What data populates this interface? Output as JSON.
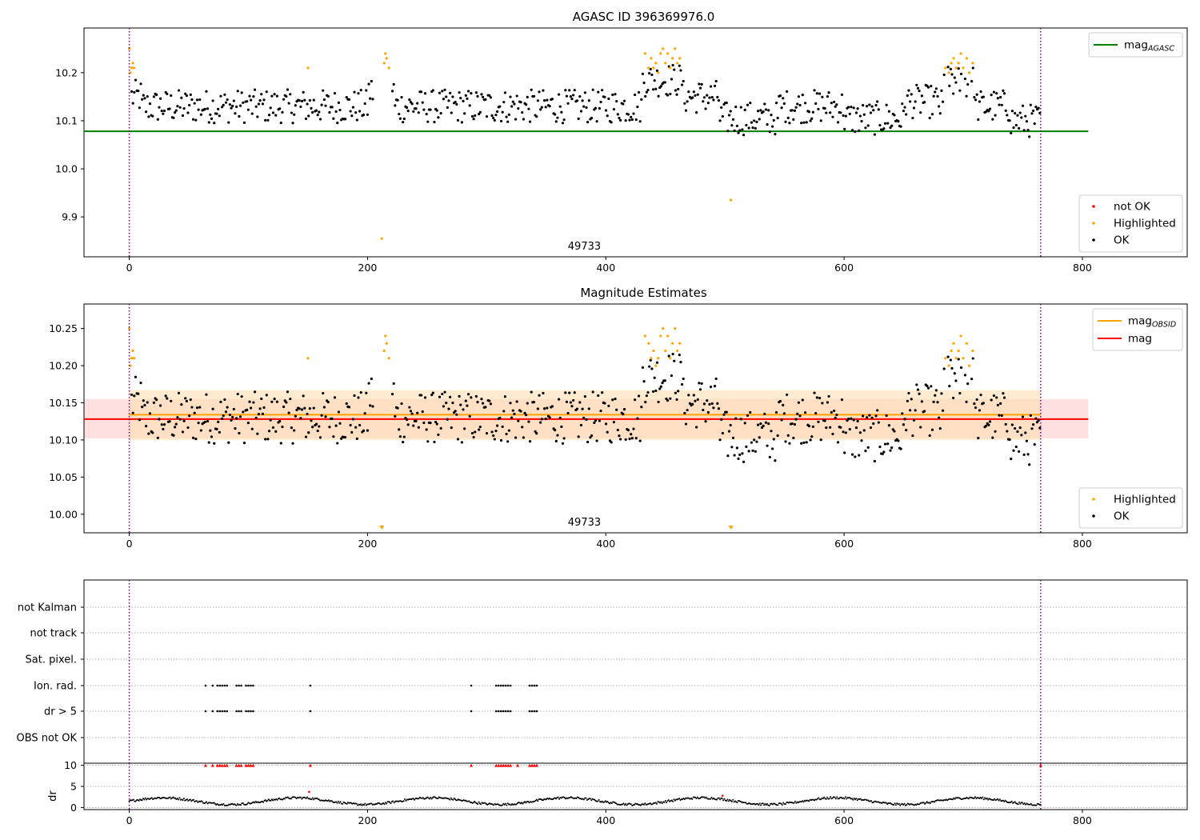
{
  "chart_data": [
    {
      "type": "scatter",
      "title": "AGASC ID 396369976.0",
      "xlim": [
        -38,
        888
      ],
      "ylim": [
        9.817,
        10.293
      ],
      "xticks": [
        "0",
        "200",
        "400",
        "600",
        "800"
      ],
      "yticks": [
        "9.9",
        "10.0",
        "10.1",
        "10.2"
      ],
      "annotation": "49733",
      "vlines": [
        0,
        765
      ],
      "hlines": [
        {
          "y": 10.078,
          "x0": -38,
          "x1": 805,
          "color": "#008000"
        }
      ],
      "legend_lines": [
        {
          "label": "mag",
          "sub": "AGASC",
          "color": "#008000"
        }
      ],
      "legend_points": [
        {
          "label": "not OK",
          "color": "#ff0000"
        },
        {
          "label": "Highlighted",
          "color": "#ffa500"
        },
        {
          "label": "OK",
          "color": "#000000"
        }
      ],
      "series": [
        {
          "name": "Highlighted",
          "color": "#ffa500",
          "points": [
            [
              0,
              10.25
            ],
            [
              1,
              10.2
            ],
            [
              2,
              10.21
            ],
            [
              3,
              10.22
            ],
            [
              4,
              10.21
            ],
            [
              150,
              10.21
            ],
            [
              212,
              9.855
            ],
            [
              214,
              10.22
            ],
            [
              215,
              10.24
            ],
            [
              216,
              10.23
            ],
            [
              218,
              10.21
            ],
            [
              433,
              10.24
            ],
            [
              436,
              10.21
            ],
            [
              438,
              10.23
            ],
            [
              440,
              10.21
            ],
            [
              442,
              10.22
            ],
            [
              444,
              10.2
            ],
            [
              446,
              10.24
            ],
            [
              448,
              10.25
            ],
            [
              450,
              10.22
            ],
            [
              452,
              10.24
            ],
            [
              454,
              10.21
            ],
            [
              456,
              10.23
            ],
            [
              458,
              10.25
            ],
            [
              460,
              10.22
            ],
            [
              462,
              10.23
            ],
            [
              505,
              9.935
            ],
            [
              685,
              10.21
            ],
            [
              688,
              10.2
            ],
            [
              690,
              10.22
            ],
            [
              692,
              10.23
            ],
            [
              694,
              10.21
            ],
            [
              696,
              10.22
            ],
            [
              698,
              10.24
            ],
            [
              700,
              10.21
            ],
            [
              703,
              10.23
            ],
            [
              705,
              10.2
            ],
            [
              708,
              10.22
            ]
          ]
        },
        {
          "name": "OK",
          "color": "#000000",
          "procedural": true
        }
      ]
    },
    {
      "type": "scatter",
      "title": "Magnitude Estimates",
      "xlim": [
        -38,
        888
      ],
      "ylim": [
        9.975,
        10.283
      ],
      "xticks": [
        "0",
        "200",
        "400",
        "600",
        "800"
      ],
      "yticks": [
        "10.00",
        "10.05",
        "10.10",
        "10.15",
        "10.20",
        "10.25"
      ],
      "annotation": "49733",
      "vlines": [
        0,
        765
      ],
      "bands": [
        {
          "y0": 10.102,
          "y1": 10.155,
          "x0": -38,
          "x1": 805,
          "color": "#ffcccc"
        },
        {
          "y0": 10.1,
          "y1": 10.167,
          "x0": 0,
          "x1": 765,
          "color": "#ffdfb0"
        }
      ],
      "hlines": [
        {
          "y": 10.134,
          "x0": 0,
          "x1": 765,
          "color": "#ffa500"
        },
        {
          "y": 10.128,
          "x0": -38,
          "x1": 805,
          "color": "#ff0000"
        }
      ],
      "legend_lines": [
        {
          "label": "mag",
          "sub": "OBSID",
          "color": "#ffa500"
        },
        {
          "label": "mag",
          "sub": "",
          "color": "#ff0000"
        }
      ],
      "legend_points": [
        {
          "label": "Highlighted",
          "color": "#ffa500"
        },
        {
          "label": "OK",
          "color": "#000000"
        }
      ],
      "markers": [
        {
          "x": 212,
          "y": 9.978,
          "color": "#ffa500"
        },
        {
          "x": 505,
          "y": 9.978,
          "color": "#ffa500"
        }
      ],
      "series": [
        {
          "name": "Highlighted",
          "color": "#ffa500",
          "points": [
            [
              0,
              10.25
            ],
            [
              1,
              10.2
            ],
            [
              2,
              10.21
            ],
            [
              3,
              10.22
            ],
            [
              4,
              10.21
            ],
            [
              150,
              10.21
            ],
            [
              214,
              10.22
            ],
            [
              215,
              10.24
            ],
            [
              216,
              10.23
            ],
            [
              218,
              10.21
            ],
            [
              433,
              10.24
            ],
            [
              436,
              10.23
            ],
            [
              438,
              10.21
            ],
            [
              440,
              10.22
            ],
            [
              442,
              10.2
            ],
            [
              444,
              10.21
            ],
            [
              446,
              10.24
            ],
            [
              448,
              10.25
            ],
            [
              450,
              10.22
            ],
            [
              452,
              10.24
            ],
            [
              454,
              10.21
            ],
            [
              456,
              10.23
            ],
            [
              458,
              10.25
            ],
            [
              460,
              10.22
            ],
            [
              462,
              10.23
            ],
            [
              685,
              10.21
            ],
            [
              688,
              10.2
            ],
            [
              690,
              10.22
            ],
            [
              692,
              10.23
            ],
            [
              694,
              10.21
            ],
            [
              696,
              10.22
            ],
            [
              698,
              10.24
            ],
            [
              700,
              10.21
            ],
            [
              703,
              10.23
            ],
            [
              705,
              10.2
            ],
            [
              708,
              10.22
            ]
          ]
        },
        {
          "name": "OK",
          "color": "#000000",
          "procedural": true
        }
      ]
    },
    {
      "type": "scatter",
      "title": "",
      "xlim": [
        -38,
        888
      ],
      "xticks": [
        "0",
        "200",
        "400",
        "600",
        "800"
      ],
      "flag_labels": [
        "not Kalman",
        "not track",
        "Sat. pixel.",
        "Ion. rad.",
        "dr > 5",
        "OBS not OK"
      ],
      "vlines": [
        0,
        765
      ],
      "flag_points": {
        "Ion. rad.": [
          64,
          70,
          74,
          76,
          78,
          80,
          82,
          90,
          92,
          94,
          98,
          100,
          102,
          104,
          152,
          287,
          308,
          310,
          312,
          314,
          316,
          318,
          320,
          336,
          338,
          340,
          342
        ],
        "dr > 5": [
          64,
          70,
          74,
          76,
          78,
          80,
          82,
          90,
          92,
          94,
          98,
          100,
          102,
          104,
          152,
          287,
          308,
          310,
          312,
          314,
          316,
          318,
          320,
          336,
          338,
          340,
          342
        ]
      }
    },
    {
      "type": "line",
      "title": "",
      "ylabel": "dr",
      "xlim": [
        -38,
        888
      ],
      "ylim": [
        -0.5,
        10.5
      ],
      "yticks": [
        "0",
        "5",
        "10"
      ],
      "xticks": [
        "0",
        "200",
        "400",
        "600",
        "800"
      ],
      "vlines": [
        0,
        765
      ],
      "red_points_y": 10,
      "red_points": [
        64,
        70,
        74,
        76,
        78,
        80,
        82,
        90,
        92,
        94,
        98,
        100,
        102,
        104,
        152,
        287,
        308,
        310,
        312,
        314,
        316,
        318,
        320,
        326,
        336,
        338,
        340,
        342,
        765
      ],
      "outliers": [
        [
          151,
          3.7
        ],
        [
          498,
          2.8
        ]
      ],
      "series": [
        {
          "color": "#000000",
          "procedural": true
        }
      ]
    }
  ]
}
